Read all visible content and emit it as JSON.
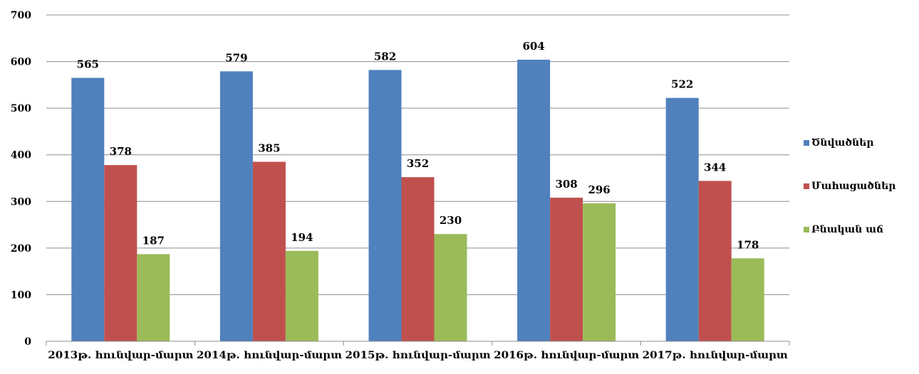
{
  "chart_data": {
    "type": "bar",
    "categories": [
      "2013թ. հունվար-մարտ",
      "2014թ. հունվար-մարտ",
      "2015թ. հունվար-մարտ",
      "2016թ. հունվար-մարտ",
      "2017թ. հունվար-մարտ"
    ],
    "series": [
      {
        "name": "Ծնվածներ",
        "color": "#4f81bd",
        "values": [
          565,
          579,
          582,
          604,
          522
        ]
      },
      {
        "name": "Մահացածներ",
        "color": "#c0504d",
        "values": [
          378,
          385,
          352,
          308,
          344
        ]
      },
      {
        "name": "Բնական աճ",
        "color": "#9bbb59",
        "values": [
          187,
          194,
          230,
          296,
          178
        ]
      }
    ],
    "yticks": [
      0,
      100,
      200,
      300,
      400,
      500,
      600,
      700
    ],
    "ylim": [
      0,
      700
    ],
    "grid": true,
    "legend": "right"
  }
}
